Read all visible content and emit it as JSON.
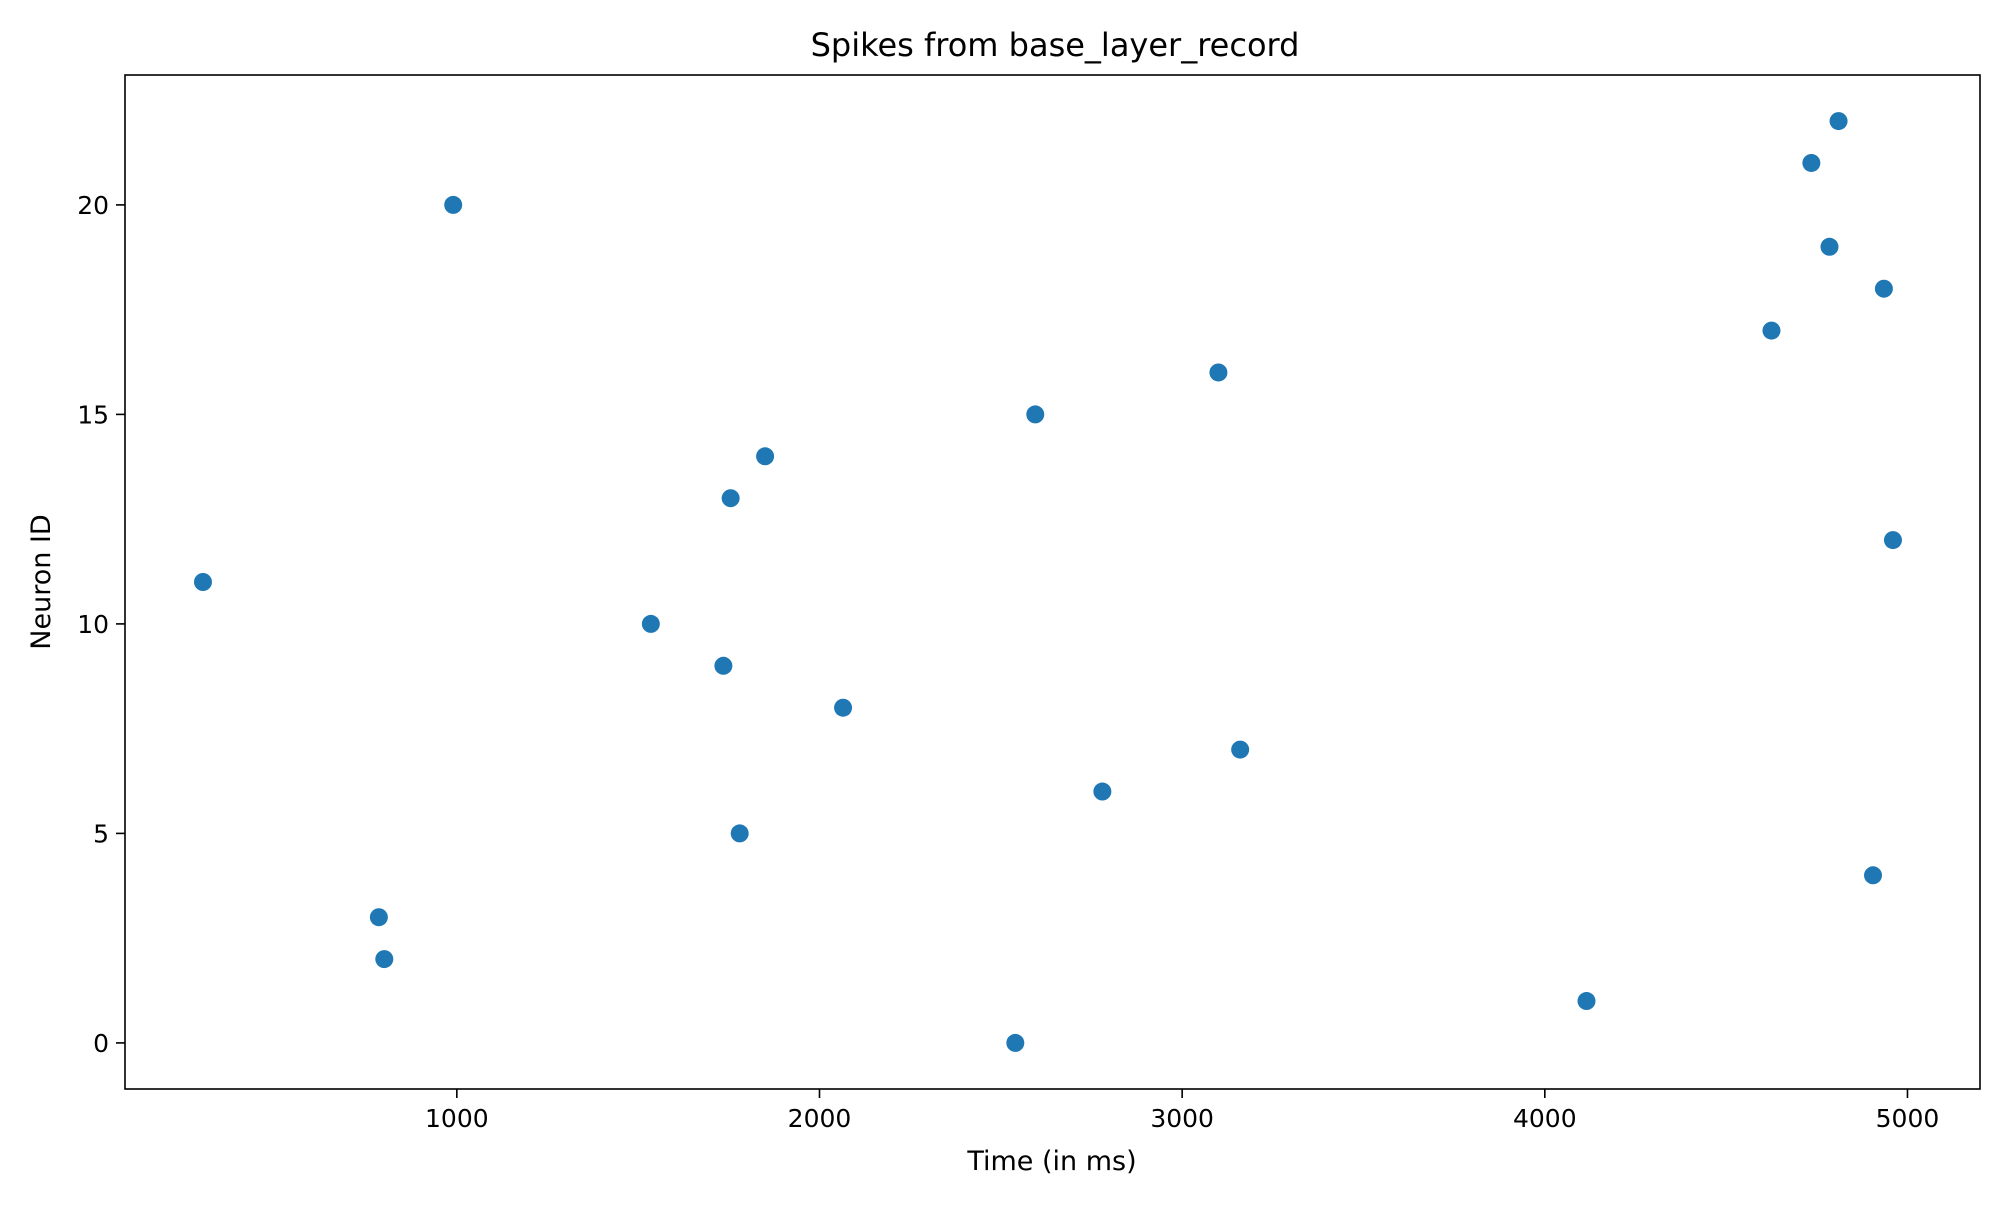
{
  "chart_data": {
    "type": "scatter",
    "title": "Spikes from base_layer_record",
    "xlabel": "Time (in ms)",
    "ylabel": "Neuron ID",
    "xlim": [
      85,
      5200
    ],
    "ylim": [
      -1.1,
      23.1
    ],
    "xticks": [
      1000,
      2000,
      3000,
      4000,
      5000
    ],
    "yticks": [
      0,
      5,
      10,
      15,
      20
    ],
    "grid": false,
    "color": "#1f77b4",
    "points": [
      {
        "x": 2540,
        "y": 0
      },
      {
        "x": 4115,
        "y": 1
      },
      {
        "x": 800,
        "y": 2
      },
      {
        "x": 785,
        "y": 3
      },
      {
        "x": 4905,
        "y": 4
      },
      {
        "x": 1780,
        "y": 5
      },
      {
        "x": 2780,
        "y": 6
      },
      {
        "x": 3160,
        "y": 7
      },
      {
        "x": 2065,
        "y": 8
      },
      {
        "x": 1735,
        "y": 9
      },
      {
        "x": 1535,
        "y": 10
      },
      {
        "x": 300,
        "y": 11
      },
      {
        "x": 4960,
        "y": 12
      },
      {
        "x": 1755,
        "y": 13
      },
      {
        "x": 1850,
        "y": 14
      },
      {
        "x": 2595,
        "y": 15
      },
      {
        "x": 3100,
        "y": 16
      },
      {
        "x": 4625,
        "y": 17
      },
      {
        "x": 4935,
        "y": 18
      },
      {
        "x": 4785,
        "y": 19
      },
      {
        "x": 990,
        "y": 20
      },
      {
        "x": 4735,
        "y": 21
      },
      {
        "x": 4810,
        "y": 22
      }
    ]
  }
}
